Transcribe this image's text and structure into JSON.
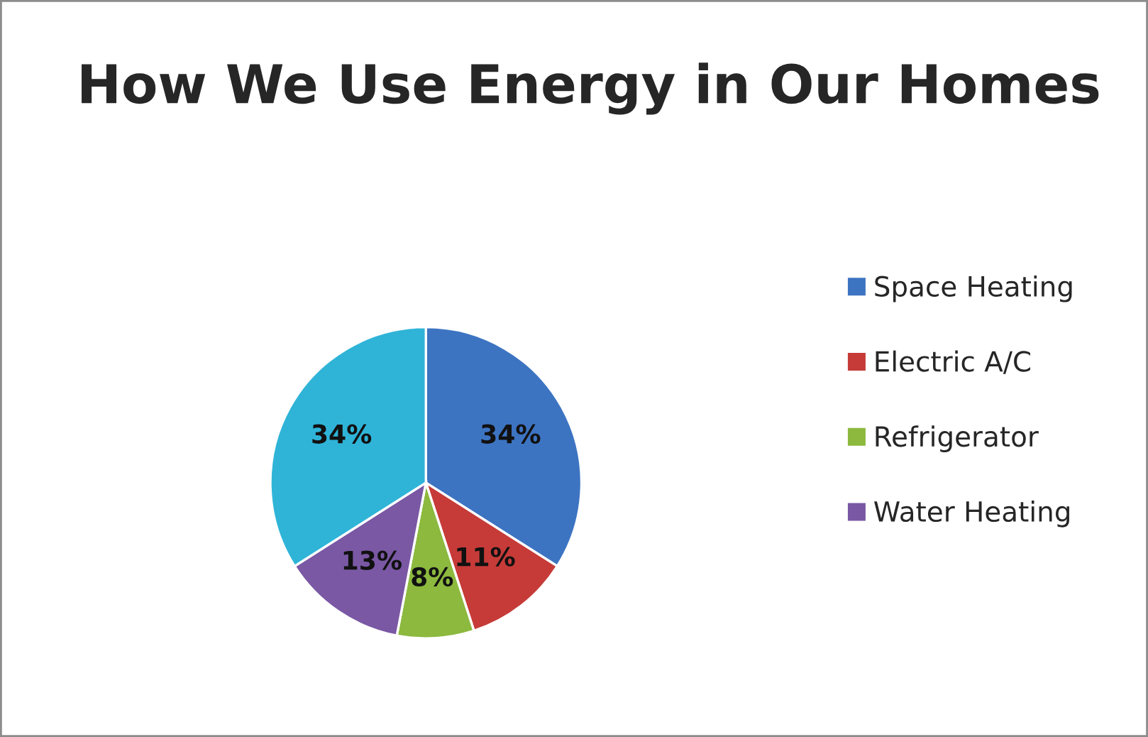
{
  "chart_data": {
    "type": "pie",
    "title": "How We Use Energy in Our Homes",
    "categories": [
      "Space Heating",
      "Electric A/C",
      "Refrigerator",
      "Water Heating",
      null
    ],
    "values": [
      34,
      11,
      8,
      13,
      34
    ],
    "value_labels": [
      "34%",
      "11%",
      "8%",
      "13%",
      "34%"
    ],
    "colors": [
      "#3d74c2",
      "#c63b38",
      "#8cb93e",
      "#7a58a4",
      "#2fb4d8"
    ],
    "legend": "right"
  }
}
